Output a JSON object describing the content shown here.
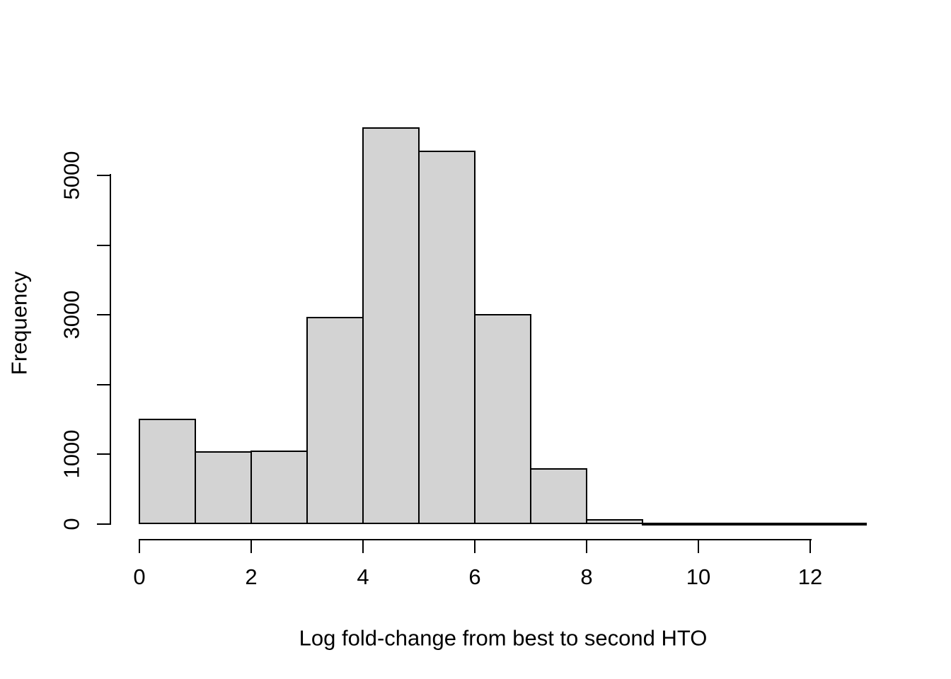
{
  "chart_data": {
    "type": "bar",
    "subtype": "histogram",
    "title": "",
    "xlabel": "Log fold-change from best to second HTO",
    "ylabel": "Frequency",
    "bin_edges": [
      0,
      1,
      2,
      3,
      4,
      5,
      6,
      7,
      8,
      9,
      10,
      11,
      12,
      13
    ],
    "counts": [
      1515,
      1045,
      1055,
      2970,
      5690,
      5355,
      3010,
      800,
      70,
      15,
      8,
      5,
      3
    ],
    "x_ticks": [
      {
        "value": 0,
        "label": "0"
      },
      {
        "value": 2,
        "label": "2"
      },
      {
        "value": 4,
        "label": "4"
      },
      {
        "value": 6,
        "label": "6"
      },
      {
        "value": 8,
        "label": "8"
      },
      {
        "value": 10,
        "label": "10"
      },
      {
        "value": 12,
        "label": "12"
      }
    ],
    "y_ticks": [
      {
        "value": 0,
        "label": "0"
      },
      {
        "value": 1000,
        "label": "1000"
      },
      {
        "value": 2000,
        "label": ""
      },
      {
        "value": 3000,
        "label": "3000"
      },
      {
        "value": 4000,
        "label": ""
      },
      {
        "value": 5000,
        "label": "5000"
      }
    ],
    "xlim": [
      0,
      13
    ],
    "ylim": [
      0,
      5700
    ],
    "grid": false,
    "legend_position": null,
    "colors": {
      "bar_fill": "#d3d3d3",
      "bar_stroke": "#000000",
      "axis": "#000000",
      "text": "#000000",
      "background": "#ffffff"
    }
  }
}
